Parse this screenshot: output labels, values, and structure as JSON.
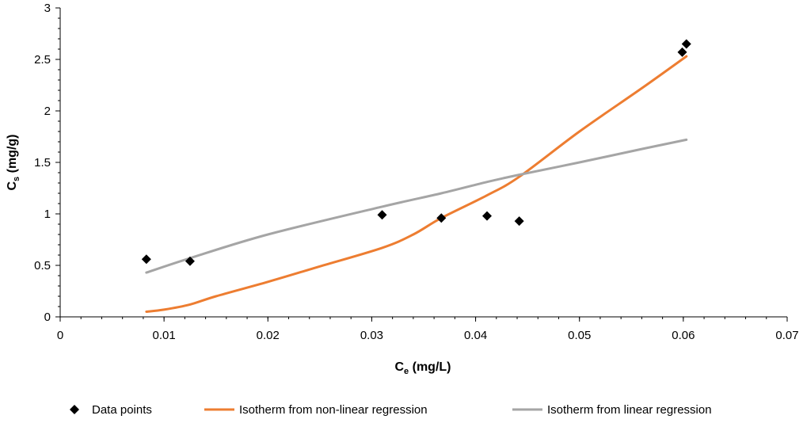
{
  "chart_data": {
    "type": "scatter",
    "xlabel": {
      "main": "C",
      "sub": "e",
      "unit": " (mg/L)"
    },
    "ylabel": {
      "main": "C",
      "sub": "s",
      "unit": " (mg/g)"
    },
    "xlim": [
      0,
      0.07
    ],
    "ylim": [
      0,
      3
    ],
    "xticks": [
      0,
      0.01,
      0.02,
      0.03,
      0.04,
      0.05,
      0.06,
      0.07
    ],
    "xtick_labels": [
      "0",
      "0.01",
      "0.02",
      "0.03",
      "0.04",
      "0.05",
      "0.06",
      "0.07"
    ],
    "yticks": [
      0,
      0.5,
      1,
      1.5,
      2,
      2.5,
      3
    ],
    "ytick_labels": [
      "0",
      "0.5",
      "1",
      "1.5",
      "2",
      "2.5",
      "3"
    ],
    "grid": false,
    "legend_position": "bottom",
    "series": [
      {
        "name": "Data points",
        "kind": "scatter",
        "marker": "diamond",
        "color": "#000000",
        "x": [
          0.0083,
          0.0125,
          0.031,
          0.0367,
          0.0411,
          0.0442,
          0.0599,
          0.0603
        ],
        "y": [
          0.56,
          0.54,
          0.99,
          0.96,
          0.98,
          0.93,
          2.57,
          2.65
        ]
      },
      {
        "name": "Isotherm from non-linear regression",
        "kind": "line",
        "color": "#ED7D31",
        "x": [
          0.0083,
          0.01,
          0.0125,
          0.015,
          0.02,
          0.025,
          0.031,
          0.034,
          0.0367,
          0.0411,
          0.0442,
          0.05,
          0.056,
          0.0603
        ],
        "y": [
          0.05,
          0.07,
          0.12,
          0.2,
          0.34,
          0.49,
          0.67,
          0.8,
          0.96,
          1.18,
          1.36,
          1.8,
          2.22,
          2.53
        ]
      },
      {
        "name": "Isotherm from linear regression",
        "kind": "line",
        "color": "#A5A5A5",
        "x": [
          0.0083,
          0.0125,
          0.02,
          0.031,
          0.0367,
          0.0411,
          0.0442,
          0.05,
          0.056,
          0.0603
        ],
        "y": [
          0.43,
          0.57,
          0.8,
          1.07,
          1.2,
          1.31,
          1.38,
          1.5,
          1.63,
          1.72
        ]
      }
    ]
  }
}
